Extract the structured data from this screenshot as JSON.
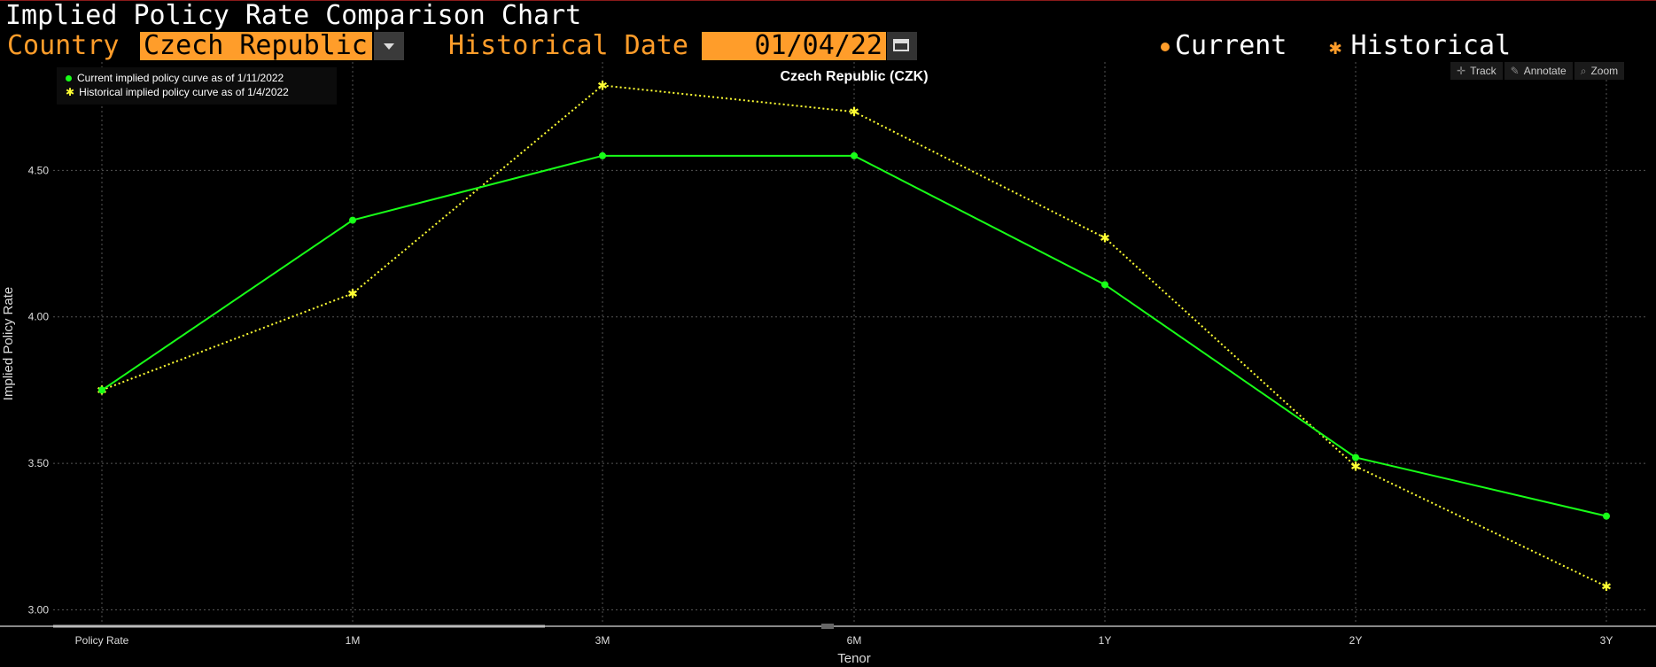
{
  "header": {
    "title": "Implied Policy Rate Comparison Chart",
    "country_label": "Country",
    "country_value": "Czech Republic",
    "historical_date_label": "Historical Date",
    "historical_date_value": "01/04/22",
    "legend_current": "Current",
    "legend_historical": "Historical"
  },
  "toolbar": {
    "track": "Track",
    "annotate": "Annotate",
    "zoom": "Zoom"
  },
  "colors": {
    "accent": "#ff9d2a",
    "current_series": "#18ff18",
    "historical_series": "#ffff33"
  },
  "chart_data": {
    "type": "line",
    "title": "Czech Republic (CZK)",
    "xlabel": "Tenor",
    "ylabel": "Implied Policy Rate",
    "categories": [
      "Policy Rate",
      "1M",
      "3M",
      "6M",
      "1Y",
      "2Y",
      "3Y"
    ],
    "yticks": [
      "3.00",
      "3.50",
      "4.00",
      "4.50"
    ],
    "ylim": [
      2.95,
      4.87
    ],
    "grid": true,
    "legend_position": "top-left",
    "series": [
      {
        "name": "Current implied policy curve as of 1/11/2022",
        "marker": "dot",
        "values": [
          3.75,
          4.33,
          4.55,
          4.55,
          4.11,
          3.52,
          3.32
        ]
      },
      {
        "name": "Historical implied policy curve as of 1/4/2022",
        "marker": "star",
        "values": [
          3.75,
          4.08,
          4.79,
          4.7,
          4.27,
          3.49,
          3.08
        ]
      }
    ]
  }
}
